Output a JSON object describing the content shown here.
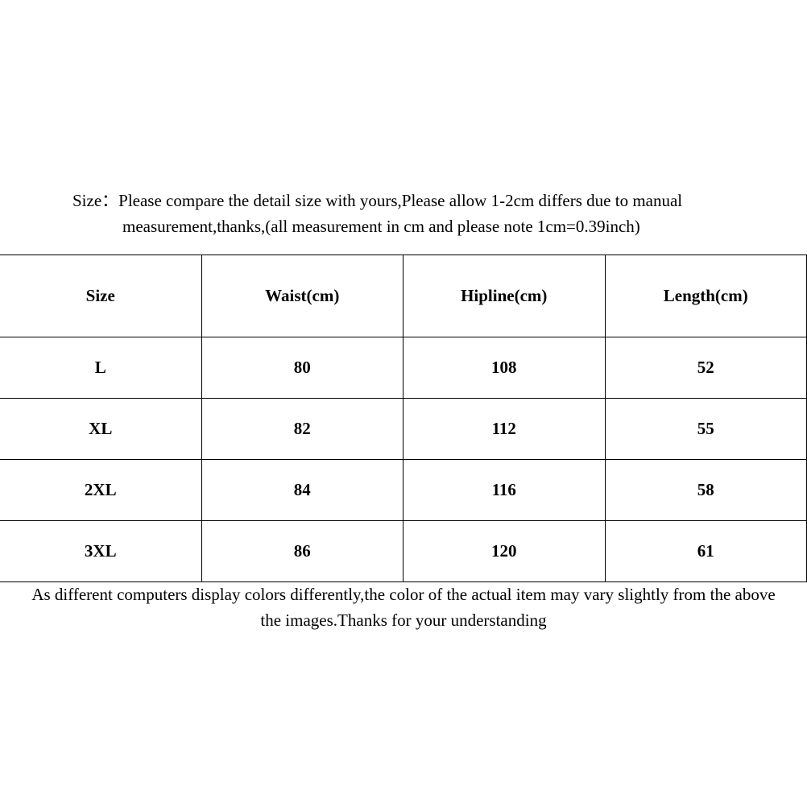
{
  "intro": {
    "line1": "Size：Please compare the detail size with yours,Please allow 1-2cm differs due to manual",
    "line2": "measurement,thanks,(all measurement in cm and please note 1cm=0.39inch)"
  },
  "table": {
    "headers": [
      "Size",
      "Waist(cm)",
      "Hipline(cm)",
      "Length(cm)"
    ],
    "rows": [
      [
        "L",
        "80",
        "108",
        "52"
      ],
      [
        "XL",
        "82",
        "112",
        "55"
      ],
      [
        "2XL",
        "84",
        "116",
        "58"
      ],
      [
        "3XL",
        "86",
        "120",
        "61"
      ]
    ]
  },
  "note": {
    "line1": "As different computers display colors differently,the color of the actual item may vary slightly from the above",
    "line2": "the images.Thanks for your understanding"
  }
}
